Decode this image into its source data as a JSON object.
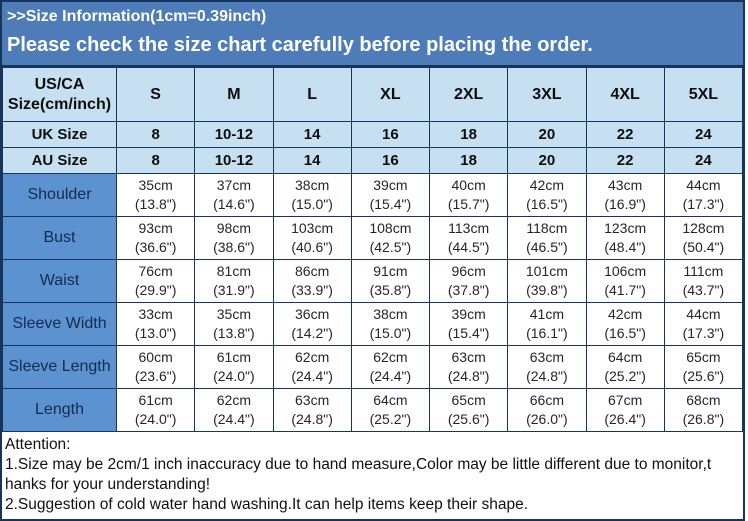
{
  "banner": {
    "title": ">>Size Information(1cm=0.39inch)",
    "subtitle": "Please check the size chart carefully before placing the order."
  },
  "table": {
    "corner_label": "US/CA Size(cm/inch)",
    "sizes": [
      "S",
      "M",
      "L",
      "XL",
      "2XL",
      "3XL",
      "4XL",
      "5XL"
    ],
    "size_rows": [
      {
        "label": "UK Size",
        "values": [
          "8",
          "10-12",
          "14",
          "16",
          "18",
          "20",
          "22",
          "24"
        ]
      },
      {
        "label": "AU Size",
        "values": [
          "8",
          "10-12",
          "14",
          "16",
          "18",
          "20",
          "22",
          "24"
        ]
      }
    ],
    "measure_rows": [
      {
        "label": "Shoulder",
        "cm": [
          "35cm",
          "37cm",
          "38cm",
          "39cm",
          "40cm",
          "42cm",
          "43cm",
          "44cm"
        ],
        "inch": [
          "(13.8\")",
          "(14.6\")",
          "(15.0\")",
          "(15.4\")",
          "(15.7\")",
          "(16.5\")",
          "(16.9\")",
          "(17.3\")"
        ]
      },
      {
        "label": "Bust",
        "cm": [
          "93cm",
          "98cm",
          "103cm",
          "108cm",
          "113cm",
          "118cm",
          "123cm",
          "128cm"
        ],
        "inch": [
          "(36.6\")",
          "(38.6\")",
          "(40.6\")",
          "(42.5\")",
          "(44.5\")",
          "(46.5\")",
          "(48.4\")",
          "(50.4\")"
        ]
      },
      {
        "label": "Waist",
        "cm": [
          "76cm",
          "81cm",
          "86cm",
          "91cm",
          "96cm",
          "101cm",
          "106cm",
          "111cm"
        ],
        "inch": [
          "(29.9\")",
          "(31.9\")",
          "(33.9\")",
          "(35.8\")",
          "(37.8\")",
          "(39.8\")",
          "(41.7\")",
          "(43.7\")"
        ]
      },
      {
        "label": "Sleeve Width",
        "cm": [
          "33cm",
          "35cm",
          "36cm",
          "38cm",
          "39cm",
          "41cm",
          "42cm",
          "44cm"
        ],
        "inch": [
          "(13.0\")",
          "(13.8\")",
          "(14.2\")",
          "(15.0\")",
          "(15.4\")",
          "(16.1\")",
          "(16.5\")",
          "(17.3\")"
        ]
      },
      {
        "label": "Sleeve Length",
        "cm": [
          "60cm",
          "61cm",
          "62cm",
          "62cm",
          "63cm",
          "63cm",
          "64cm",
          "65cm"
        ],
        "inch": [
          "(23.6\")",
          "(24.0\")",
          "(24.4\")",
          "(24.4\")",
          "(24.8\")",
          "(24.8\")",
          "(25.2\")",
          "(25.6\")"
        ]
      },
      {
        "label": "Length",
        "cm": [
          "61cm",
          "62cm",
          "63cm",
          "64cm",
          "65cm",
          "66cm",
          "67cm",
          "68cm"
        ],
        "inch": [
          "(24.0\")",
          "(24.4\")",
          "(24.8\")",
          "(25.2\")",
          "(25.6\")",
          "(26.0\")",
          "(26.4\")",
          "(26.8\")"
        ]
      }
    ]
  },
  "attention": {
    "title": "Attention:",
    "lines": [
      "1.Size may be 2cm/1 inch inaccuracy due to hand measure,Color may be little different due to monitor,t",
      "hanks for your understanding!",
      "2.Suggestion of cold water hand washing.It can help items keep their shape."
    ]
  },
  "colors": {
    "banner_bg": "#4e7cb8",
    "banner_text": "#ffffff",
    "light_blue": "#c6e0f2",
    "label_blue": "#5c92d0",
    "border": "#16355c",
    "data_text": "#262626",
    "label_text": "#132c4e"
  }
}
